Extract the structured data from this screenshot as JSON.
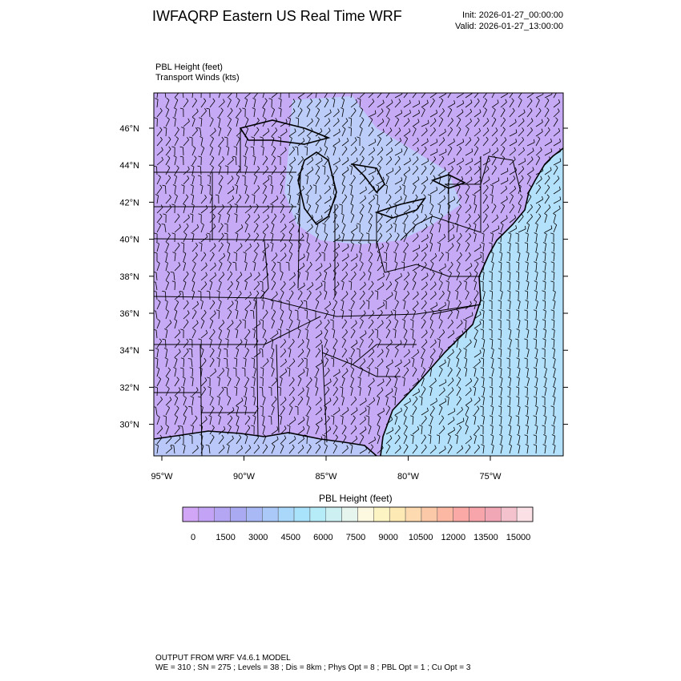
{
  "header": {
    "title": "IWFAQRP Eastern US Real Time WRF",
    "init": "Init: 2026-01-27_00:00:00",
    "valid": "Valid: 2026-01-27_13:00:00",
    "field_line1": "PBL Height   (feet)",
    "field_line2": "Transport Winds   (kts)"
  },
  "map": {
    "lat_ticks": [
      "46°N",
      "44°N",
      "42°N",
      "40°N",
      "38°N",
      "36°N",
      "34°N",
      "32°N",
      "30°N"
    ],
    "lon_ticks": [
      "95°W",
      "90°W",
      "85°W",
      "80°W",
      "75°W"
    ],
    "lat_values": [
      46,
      44,
      42,
      40,
      38,
      36,
      34,
      32,
      30
    ],
    "lon_values": [
      -95,
      -90,
      -85,
      -80,
      -75
    ],
    "colors": {
      "land_low": "#c8a8f5",
      "land_mid": "#b9b0f8",
      "lakes_region": "#b8d6f8",
      "ocean": "#b2e2fb",
      "barb": "#000000"
    }
  },
  "colorbar": {
    "title": "PBL Height  (feet)",
    "labels": [
      "0",
      "1500",
      "3000",
      "4500",
      "6000",
      "7500",
      "9000",
      "10500",
      "12000",
      "13500",
      "15000"
    ],
    "colors": [
      "#d2a6f7",
      "#c3a3f5",
      "#b5a6f4",
      "#aaaaf3",
      "#a9b9f5",
      "#aac8f8",
      "#a9d8fb",
      "#a9e3fb",
      "#b6ebf8",
      "#cdf1f3",
      "#e6f5ee",
      "#fdf9e0",
      "#fdf4c4",
      "#fde9b4",
      "#fddab0",
      "#fcc9a8",
      "#fcb8a3",
      "#fba9a6",
      "#f7a4ab",
      "#f1a7b5",
      "#f4c2cd",
      "#fbe0e6"
    ]
  },
  "footer": {
    "line1": "OUTPUT FROM WRF V4.6.1 MODEL",
    "line2": "WE = 310 ; SN = 275 ; Levels = 38 ; Dis = 8km ; Phys Opt = 8 ; PBL Opt = 1 ; Cu Opt = 3"
  }
}
